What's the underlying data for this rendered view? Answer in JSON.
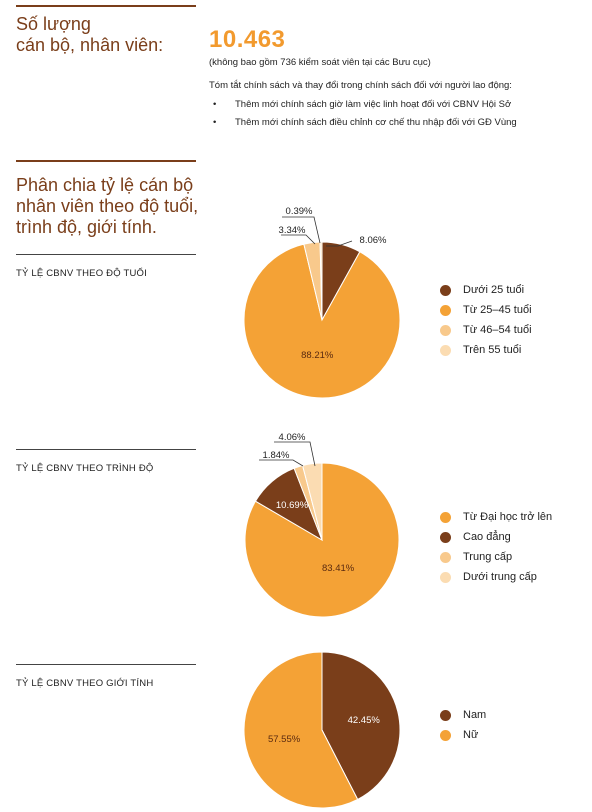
{
  "staff": {
    "heading_line1": "Số lượng",
    "heading_line2": "cán bộ, nhân viên:",
    "total": "10.463",
    "note": "(không bao gồm 736 kiểm soát viên tại các Bưu cục)",
    "summary_title": "Tóm tắt chính sách và thay đổi trong chính sách đối với người lao động:",
    "bullets": [
      "Thêm mới chính sách giờ làm việc linh hoạt đối với CBNV Hội Sở",
      "Thêm mới chính sách điều chỉnh cơ chế thu nhập đối với GĐ Vùng"
    ]
  },
  "section": {
    "line1": "Phân chia tỷ lệ cán bộ",
    "line2": "nhân viên theo độ tuổi,",
    "line3": "trình độ, giới tính."
  },
  "colors": {
    "dark": "#7a3e1a",
    "orange": "#f4a236",
    "light": "#f8c98c",
    "pale": "#fbdcb2"
  },
  "chart_data": [
    {
      "type": "pie",
      "title": "TỶ LỆ CBNV THEO ĐỘ TUỔI",
      "slices": [
        {
          "label": "Dưới 25 tuổi",
          "value": 8.06,
          "display": "8.06%",
          "color": "#7a3e1a"
        },
        {
          "label": "Từ 25–45 tuổi",
          "value": 88.21,
          "display": "88.21%",
          "color": "#f4a236"
        },
        {
          "label": "Từ 46–54 tuổi",
          "value": 3.34,
          "display": "3.34%",
          "color": "#f8c98c"
        },
        {
          "label": "Trên 55 tuổi",
          "value": 0.39,
          "display": "0.39%",
          "color": "#fbdcb2"
        }
      ],
      "legend_position": "right"
    },
    {
      "type": "pie",
      "title": "TỶ LỆ CBNV THEO TRÌNH ĐỘ",
      "slices": [
        {
          "label": "Từ Đại học trở lên",
          "value": 83.41,
          "display": "83.41%",
          "color": "#f4a236"
        },
        {
          "label": "Cao đẳng",
          "value": 10.69,
          "display": "10.69%",
          "color": "#7a3e1a"
        },
        {
          "label": "Trung cấp",
          "value": 1.84,
          "display": "1.84%",
          "color": "#f8c98c"
        },
        {
          "label": "Dưới trung cấp",
          "value": 4.06,
          "display": "4.06%",
          "color": "#fbdcb2"
        }
      ],
      "legend_position": "right"
    },
    {
      "type": "pie",
      "title": "TỶ LỆ CBNV THEO GIỚI TÍNH",
      "slices": [
        {
          "label": "Nam",
          "value": 42.45,
          "display": "42.45%",
          "color": "#7a3e1a"
        },
        {
          "label": "Nữ",
          "value": 57.55,
          "display": "57.55%",
          "color": "#f4a236"
        }
      ],
      "legend_position": "right"
    }
  ]
}
